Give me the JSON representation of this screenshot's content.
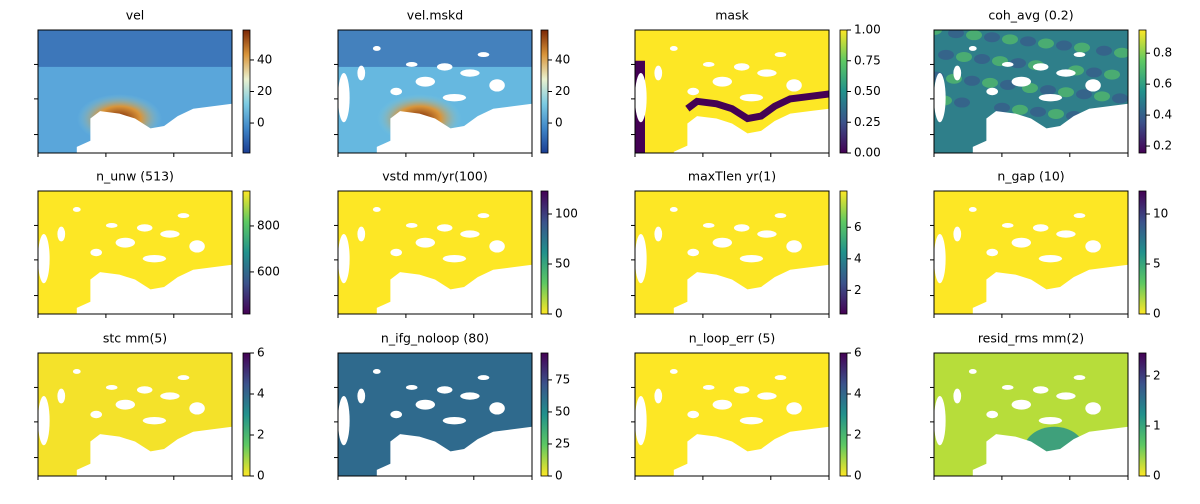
{
  "chart_data": [
    {
      "type": "image",
      "title": "vel",
      "clim": [
        -19,
        59
      ],
      "cticks": [
        0,
        20,
        40
      ],
      "colormap": [
        "#1b3d92",
        "#3f86c8",
        "#7ccbe3",
        "#e9f1cf",
        "#d9953a",
        "#7a2605"
      ],
      "fill": "#5aa6da"
    },
    {
      "type": "image",
      "title": "vel.mskd",
      "clim": [
        -19,
        59
      ],
      "cticks": [
        0,
        20,
        40
      ],
      "colormap": [
        "#1b3d92",
        "#3f86c8",
        "#7ccbe3",
        "#e9f1cf",
        "#d9953a",
        "#7a2605"
      ],
      "fill": "#66b8e0"
    },
    {
      "type": "image",
      "title": "mask",
      "clim": [
        0,
        1
      ],
      "cticks": [
        {
          "value": 0,
          "label": "0.00"
        },
        {
          "value": 0.25,
          "label": "0.25"
        },
        {
          "value": 0.5,
          "label": "0.50"
        },
        {
          "value": 0.75,
          "label": "0.75"
        },
        {
          "value": 1,
          "label": "1.00"
        }
      ],
      "colormap": [
        "#440154",
        "#3b528b",
        "#21918c",
        "#5ec962",
        "#fde725"
      ],
      "fill": "#fde725"
    },
    {
      "type": "image",
      "title": "coh_avg (0.2)",
      "clim": [
        0.155,
        0.95
      ],
      "cticks": [
        0.2,
        0.4,
        0.6,
        0.8
      ],
      "colormap": [
        "#440154",
        "#3b528b",
        "#21918c",
        "#5ec962",
        "#fde725"
      ],
      "fill": "#2f7f8a"
    },
    {
      "type": "image",
      "title": "n_unw (513)",
      "clim": [
        417,
        952
      ],
      "cticks": [
        600,
        800
      ],
      "colormap": [
        "#440154",
        "#3b528b",
        "#21918c",
        "#5ec962",
        "#fde725"
      ],
      "fill": "#fde725"
    },
    {
      "type": "image",
      "title": "vstd mm/yr(100)",
      "clim": [
        0,
        123
      ],
      "cticks": [
        0,
        50,
        100
      ],
      "colormap": [
        "#fde725",
        "#5ec962",
        "#21918c",
        "#3b528b",
        "#440154"
      ],
      "fill": "#fde725"
    },
    {
      "type": "image",
      "title": "maxTlen yr(1)",
      "clim": [
        0.5,
        8.3
      ],
      "cticks": [
        2,
        4,
        6
      ],
      "colormap": [
        "#440154",
        "#3b528b",
        "#21918c",
        "#5ec962",
        "#fde725"
      ],
      "fill": "#fde725"
    },
    {
      "type": "image",
      "title": "n_gap (10)",
      "clim": [
        0,
        12.3
      ],
      "cticks": [
        0,
        5,
        10
      ],
      "colormap": [
        "#fde725",
        "#5ec962",
        "#21918c",
        "#3b528b",
        "#440154"
      ],
      "fill": "#fde725"
    },
    {
      "type": "image",
      "title": "stc mm(5)",
      "clim": [
        0,
        6
      ],
      "cticks": [
        0,
        2,
        4,
        6
      ],
      "colormap": [
        "#fde725",
        "#5ec962",
        "#21918c",
        "#3b528b",
        "#440154"
      ],
      "fill": "#f4e22a"
    },
    {
      "type": "image",
      "title": "n_ifg_noloop (80)",
      "clim": [
        0,
        96
      ],
      "cticks": [
        0,
        25,
        50,
        75
      ],
      "colormap": [
        "#fde725",
        "#5ec962",
        "#21918c",
        "#3b528b",
        "#440154"
      ],
      "fill": "#2f6a8d"
    },
    {
      "type": "image",
      "title": "n_loop_err (5)",
      "clim": [
        0,
        6
      ],
      "cticks": [
        0,
        2,
        4,
        6
      ],
      "colormap": [
        "#fde725",
        "#5ec962",
        "#21918c",
        "#3b528b",
        "#440154"
      ],
      "fill": "#fde725"
    },
    {
      "type": "image",
      "title": "resid_rms mm(2)",
      "clim": [
        0,
        2.46
      ],
      "cticks": [
        0,
        1,
        2
      ],
      "colormap": [
        "#fde725",
        "#5ec962",
        "#21918c",
        "#3b528b",
        "#440154"
      ],
      "fill": "#b7dd3a"
    }
  ]
}
